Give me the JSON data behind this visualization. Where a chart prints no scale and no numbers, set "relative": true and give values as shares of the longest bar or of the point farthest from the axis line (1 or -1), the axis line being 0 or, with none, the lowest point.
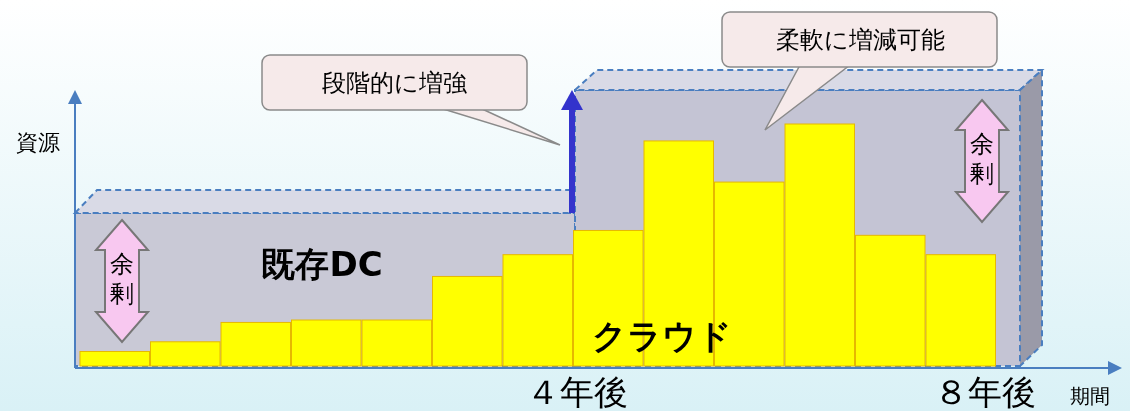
{
  "chart_data": {
    "type": "bar",
    "relative": true,
    "categories": [
      null,
      null,
      null,
      null,
      null,
      null,
      null,
      null,
      null,
      null,
      null,
      null,
      null
    ],
    "values": [
      0.06,
      0.1,
      0.18,
      0.19,
      0.19,
      0.37,
      0.46,
      0.56,
      0.93,
      0.76,
      1,
      0.54,
      0.46
    ],
    "color": "#ffff00",
    "xlabel": "期間",
    "ylabel": "資源",
    "annotations": [
      "段階的に増強",
      "柔軟に増減可能",
      "既存DC",
      "クラウド",
      "余剰",
      "余剰",
      "４年後",
      "８年後"
    ]
  }
}
